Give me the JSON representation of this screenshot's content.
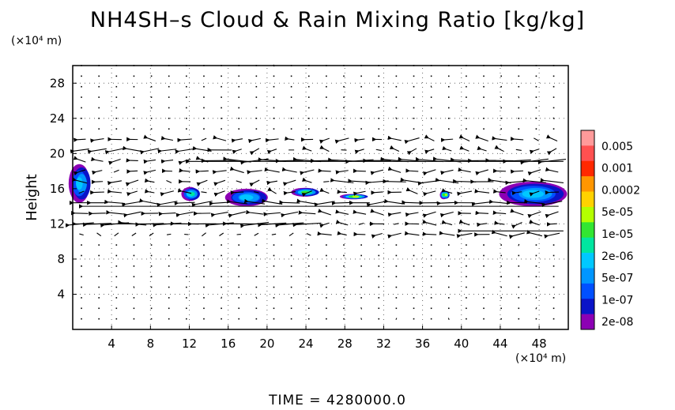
{
  "title": "NH4SH–s Cloud & Rain Mixing Ratio [kg/kg]",
  "y_unit_label": "(×10⁴ m)",
  "x_unit_label": "(×10⁴ m)",
  "time_label": "TIME = 4280000.0",
  "chart_data": {
    "type": "heatmap",
    "title": "NH4SH–s Cloud & Rain Mixing Ratio [kg/kg]",
    "xlabel": "",
    "ylabel": "Height",
    "xlim": [
      0,
      51
    ],
    "ylim": [
      0,
      30
    ],
    "xticks": [
      4,
      8,
      12,
      16,
      20,
      24,
      28,
      32,
      36,
      40,
      44,
      48
    ],
    "yticks": [
      4,
      8,
      12,
      16,
      20,
      24,
      28
    ],
    "colorbar": {
      "labels": [
        "0.005",
        "0.001",
        "0.0002",
        "5e-05",
        "1e-05",
        "2e-06",
        "5e-07",
        "1e-07",
        "2e-08"
      ],
      "colors": [
        "#ff9a9a",
        "#ff5050",
        "#ff2800",
        "#ff9600",
        "#ffd200",
        "#b4ff00",
        "#32e632",
        "#00e6a0",
        "#00c8ff",
        "#0096ff",
        "#0050ff",
        "#0a14c8",
        "#8c00b4"
      ]
    },
    "regions": [
      {
        "x": 0.8,
        "y": 16.6,
        "rx": 1.1,
        "ry": 2.2,
        "level": "5e-05"
      },
      {
        "x": 12.2,
        "y": 15.4,
        "rx": 0.9,
        "ry": 0.8,
        "level": "1e-05"
      },
      {
        "x": 18.0,
        "y": 15.0,
        "rx": 2.2,
        "ry": 1.0,
        "level": "5e-05"
      },
      {
        "x": 24.0,
        "y": 15.6,
        "rx": 1.4,
        "ry": 0.5,
        "level": "2e-06"
      },
      {
        "x": 29.0,
        "y": 15.1,
        "rx": 1.4,
        "ry": 0.3,
        "level": "5e-07"
      },
      {
        "x": 38.3,
        "y": 15.3,
        "rx": 0.4,
        "ry": 0.5,
        "level": "5e-07"
      },
      {
        "x": 47.5,
        "y": 15.4,
        "rx": 3.5,
        "ry": 1.4,
        "level": "5e-05"
      }
    ],
    "wind_field": "horizontal wind vectors; strong westward flow near heights 12, 14 and 19-20",
    "grid": true,
    "legend": "right"
  }
}
